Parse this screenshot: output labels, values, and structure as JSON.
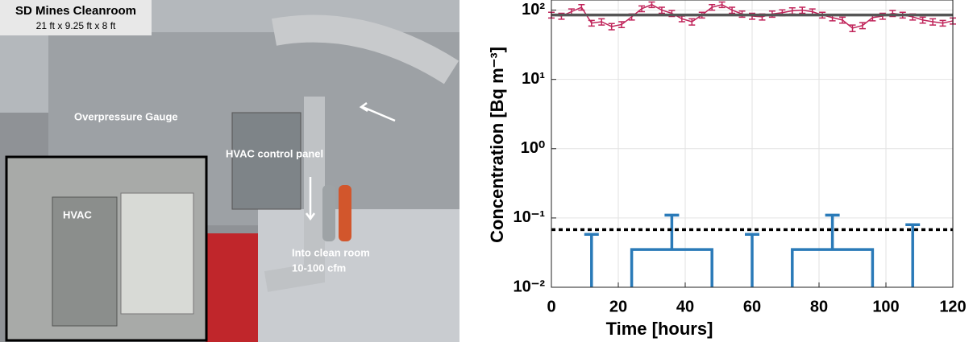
{
  "photo": {
    "title": "SD Mines Cleanroom",
    "dimensions": "21 ft x 9.25 ft x 8 ft",
    "labels": [
      "Overpressure Gauge",
      "HVAC control panel",
      "Into clean room",
      "10-100 cfm",
      "HVAC"
    ]
  },
  "chart_data": {
    "type": "line",
    "x_label": "Time [hours]",
    "y_label": "Concentration [Bq m⁻³]",
    "xlim": [
      0,
      120
    ],
    "xticks": [
      0,
      20,
      40,
      60,
      80,
      100,
      120
    ],
    "ylim": [
      0.01,
      140
    ],
    "log_y": true,
    "grid": true,
    "yticks": [
      {
        "value": 0.01,
        "label": "10⁻²"
      },
      {
        "value": 0.1,
        "label": "10⁻¹"
      },
      {
        "value": 1,
        "label": "10⁰"
      },
      {
        "value": 10,
        "label": "10¹"
      },
      {
        "value": 100,
        "label": "10²"
      }
    ],
    "series": [
      {
        "color": "#c0245a",
        "x": [
          0,
          3,
          6,
          9,
          12,
          15,
          18,
          21,
          24,
          27,
          30,
          33,
          36,
          39,
          42,
          45,
          48,
          51,
          54,
          57,
          60,
          63,
          66,
          69,
          72,
          75,
          78,
          81,
          84,
          87,
          90,
          93,
          96,
          99,
          102,
          105,
          108,
          111,
          114,
          117,
          120
        ],
        "values": [
          85,
          82,
          95,
          110,
          65,
          68,
          58,
          62,
          80,
          105,
          120,
          100,
          90,
          75,
          68,
          85,
          110,
          120,
          100,
          88,
          82,
          80,
          88,
          92,
          98,
          100,
          95,
          85,
          78,
          72,
          55,
          60,
          78,
          82,
          90,
          85,
          80,
          72,
          68,
          65,
          70
        ],
        "errors": [
          8,
          8,
          9,
          10,
          6,
          7,
          6,
          6,
          8,
          10,
          11,
          10,
          9,
          7,
          7,
          8,
          10,
          11,
          10,
          9,
          8,
          8,
          9,
          9,
          10,
          10,
          9,
          8,
          8,
          7,
          6,
          6,
          8,
          8,
          9,
          8,
          8,
          7,
          7,
          6,
          7
        ]
      },
      {
        "color": "#555555",
        "x": [
          0,
          120
        ],
        "values": [
          85,
          85
        ]
      },
      {
        "color": "#2a7ab8",
        "bins": [
          0,
          24,
          48,
          72,
          96,
          120
        ],
        "values": [
          null,
          0.035,
          null,
          0.035,
          null
        ],
        "upper": [
          0.058,
          0.11,
          0.058,
          0.11,
          0.08
        ]
      }
    ],
    "reference": {
      "value": 0.068,
      "color": "#000000"
    }
  }
}
